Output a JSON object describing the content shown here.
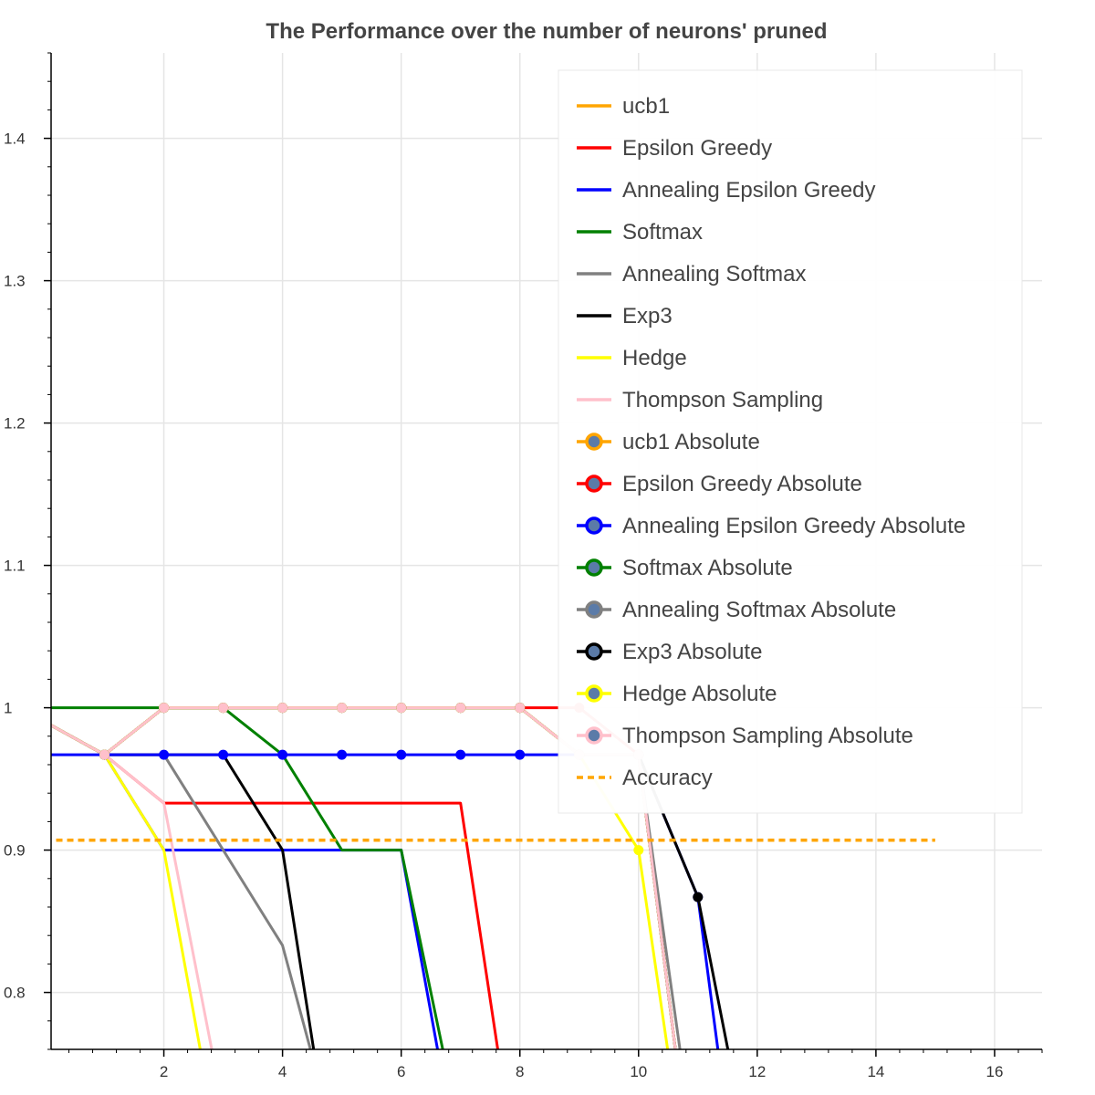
{
  "chart_data": {
    "type": "line",
    "title": "The Performance over the number of neurons' pruned",
    "xlabel": "",
    "ylabel": "",
    "xlim": [
      0.1,
      16.8
    ],
    "ylim": [
      0.76,
      1.46
    ],
    "grid": true,
    "legend_position": "top-right",
    "x_ticks": [
      2,
      4,
      6,
      8,
      10,
      12,
      14,
      16
    ],
    "x_tick_labels": [
      "2",
      "4",
      "6",
      "8",
      "10",
      "12",
      "14",
      "16"
    ],
    "y_ticks": [
      0.8,
      0.9,
      1.0,
      1.1,
      1.2,
      1.3,
      1.4
    ],
    "y_tick_labels": [
      "0.8",
      "0.9",
      "1",
      "1.1",
      "1.2",
      "1.3",
      "1.4"
    ],
    "series": [
      {
        "name": "ucb1",
        "color": "#ffa500",
        "markers": false,
        "x": [
          0,
          1,
          2,
          3,
          4,
          5,
          6,
          7,
          8,
          9,
          10,
          10.8
        ],
        "y": [
          0.99,
          0.967,
          1.0,
          1.0,
          1.0,
          1.0,
          1.0,
          1.0,
          1.0,
          0.967,
          0.967,
          0.7
        ]
      },
      {
        "name": "Epsilon Greedy",
        "color": "#ff0000",
        "markers": false,
        "x": [
          0,
          1,
          2,
          3,
          4,
          5,
          6,
          7,
          7.7
        ],
        "y": [
          0.99,
          0.967,
          0.933,
          0.933,
          0.933,
          0.933,
          0.933,
          0.933,
          0.74
        ]
      },
      {
        "name": "Annealing Epsilon Greedy",
        "color": "#0000ff",
        "markers": false,
        "x": [
          0,
          1,
          2,
          3,
          4,
          5,
          6,
          6.7
        ],
        "y": [
          0.99,
          0.967,
          0.9,
          0.9,
          0.9,
          0.9,
          0.9,
          0.74
        ]
      },
      {
        "name": "Softmax",
        "color": "#008000",
        "markers": false,
        "x": [
          0,
          1,
          2,
          3,
          4,
          5,
          6,
          6.8
        ],
        "y": [
          1.0,
          1.0,
          1.0,
          1.0,
          0.967,
          0.9,
          0.9,
          0.74
        ]
      },
      {
        "name": "Annealing Softmax",
        "color": "#808080",
        "markers": false,
        "x": [
          0,
          1,
          2,
          3,
          4,
          4.6
        ],
        "y": [
          0.99,
          0.967,
          0.967,
          0.9,
          0.833,
          0.74
        ]
      },
      {
        "name": "Exp3",
        "color": "#000000",
        "markers": false,
        "x": [
          0,
          1,
          2,
          3,
          4,
          4.6
        ],
        "y": [
          0.99,
          0.967,
          0.967,
          0.967,
          0.9,
          0.74
        ]
      },
      {
        "name": "Hedge",
        "color": "#ffff00",
        "markers": false,
        "x": [
          0,
          1,
          2,
          2.7
        ],
        "y": [
          0.99,
          0.967,
          0.9,
          0.74
        ]
      },
      {
        "name": "Thompson Sampling",
        "color": "#ffc0cb",
        "markers": false,
        "x": [
          0,
          1,
          2,
          2.9
        ],
        "y": [
          0.99,
          0.967,
          0.933,
          0.74
        ]
      },
      {
        "name": "ucb1 Absolute",
        "color": "#ffa500",
        "markers": true,
        "x": [
          0,
          1,
          2,
          3,
          4,
          5,
          6,
          7,
          8,
          9,
          10,
          10.8
        ],
        "y": [
          0.99,
          0.967,
          1.0,
          1.0,
          1.0,
          1.0,
          1.0,
          1.0,
          1.0,
          0.967,
          0.967,
          0.7
        ]
      },
      {
        "name": "Epsilon Greedy Absolute",
        "color": "#ff0000",
        "markers": true,
        "x": [
          0,
          1,
          2,
          3,
          4,
          5,
          6,
          7,
          8,
          9,
          10,
          10.8
        ],
        "y": [
          0.99,
          0.967,
          1.0,
          1.0,
          1.0,
          1.0,
          1.0,
          1.0,
          1.0,
          1.0,
          0.967,
          0.7
        ]
      },
      {
        "name": "Annealing Epsilon Greedy Absolute",
        "color": "#0000ff",
        "markers": true,
        "x": [
          0,
          1,
          2,
          3,
          4,
          5,
          6,
          7,
          8,
          9,
          10,
          11,
          11.4
        ],
        "y": [
          0.967,
          0.967,
          0.967,
          0.967,
          0.967,
          0.967,
          0.967,
          0.967,
          0.967,
          0.967,
          0.967,
          0.867,
          0.74
        ]
      },
      {
        "name": "Softmax Absolute",
        "color": "#008000",
        "markers": true,
        "x": [
          0,
          1,
          2,
          3,
          4,
          5,
          6,
          7,
          8,
          9,
          10,
          10.8
        ],
        "y": [
          0.99,
          0.967,
          1.0,
          1.0,
          1.0,
          1.0,
          1.0,
          1.0,
          1.0,
          0.967,
          0.967,
          0.7
        ]
      },
      {
        "name": "Annealing Softmax Absolute",
        "color": "#808080",
        "markers": true,
        "x": [
          0,
          1,
          2,
          3,
          4,
          5,
          6,
          7,
          8,
          9,
          10,
          10.9
        ],
        "y": [
          0.99,
          0.967,
          1.0,
          1.0,
          1.0,
          1.0,
          1.0,
          1.0,
          1.0,
          0.967,
          0.967,
          0.7
        ]
      },
      {
        "name": "Exp3 Absolute",
        "color": "#000000",
        "markers": true,
        "x": [
          0,
          1,
          2,
          3,
          4,
          5,
          6,
          7,
          8,
          9,
          10,
          11,
          11.6
        ],
        "y": [
          0.99,
          0.967,
          1.0,
          1.0,
          1.0,
          1.0,
          1.0,
          1.0,
          1.0,
          0.967,
          0.967,
          0.867,
          0.74
        ]
      },
      {
        "name": "Hedge Absolute",
        "color": "#ffff00",
        "markers": true,
        "x": [
          0,
          1,
          2,
          3,
          4,
          5,
          6,
          7,
          8,
          9,
          10,
          10.7
        ],
        "y": [
          0.99,
          0.967,
          1.0,
          1.0,
          1.0,
          1.0,
          1.0,
          1.0,
          1.0,
          0.967,
          0.9,
          0.7
        ]
      },
      {
        "name": "Thompson Sampling Absolute",
        "color": "#ffc0cb",
        "markers": true,
        "x": [
          0,
          1,
          2,
          3,
          4,
          5,
          6,
          7,
          8,
          9,
          10,
          10.8
        ],
        "y": [
          0.99,
          0.967,
          1.0,
          1.0,
          1.0,
          1.0,
          1.0,
          1.0,
          1.0,
          0.967,
          0.967,
          0.7
        ]
      },
      {
        "name": "Accuracy",
        "color": "#ffa500",
        "markers": false,
        "dashed": true,
        "x": [
          0,
          15
        ],
        "y": [
          0.907,
          0.907
        ]
      }
    ]
  }
}
